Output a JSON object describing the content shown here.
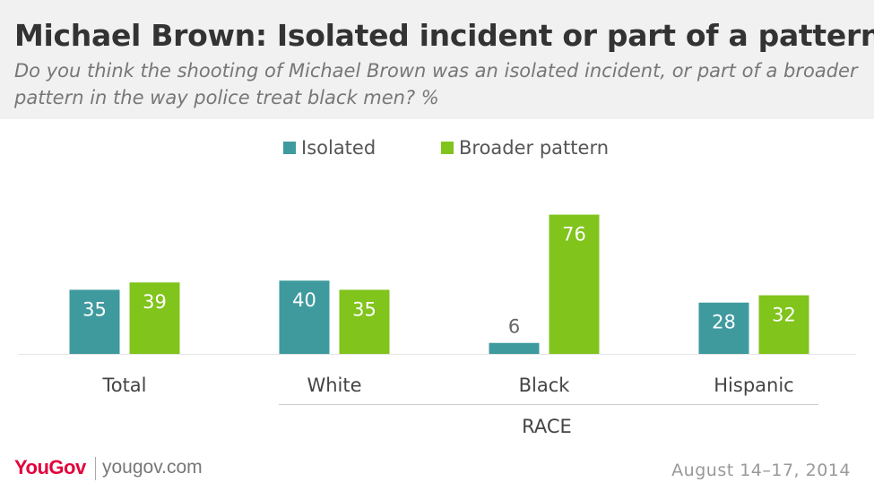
{
  "header": {
    "title": "Michael Brown: Isolated incident or part of a pattern?",
    "subtitle": "Do you think the shooting of Michael Brown was an isolated incident, or part of a broader pattern in the way police treat black men? %"
  },
  "legend": {
    "items": [
      {
        "label": "Isolated",
        "color": "#3f9a9e"
      },
      {
        "label": "Broader pattern",
        "color": "#80c41c"
      }
    ]
  },
  "chart_data": {
    "type": "bar",
    "categories": [
      "Total",
      "White",
      "Black",
      "Hispanic"
    ],
    "series": [
      {
        "name": "Isolated",
        "values": [
          35,
          40,
          6,
          28
        ],
        "color": "#3f9a9e"
      },
      {
        "name": "Broader pattern",
        "values": [
          39,
          35,
          76,
          32
        ],
        "color": "#80c41c"
      }
    ],
    "group_label": "RACE",
    "ylim": [
      0,
      80
    ],
    "grid": false,
    "legend_position": "top"
  },
  "footer": {
    "logo": "YouGov",
    "url": "yougov.com",
    "date": "August 14–17, 2014"
  }
}
